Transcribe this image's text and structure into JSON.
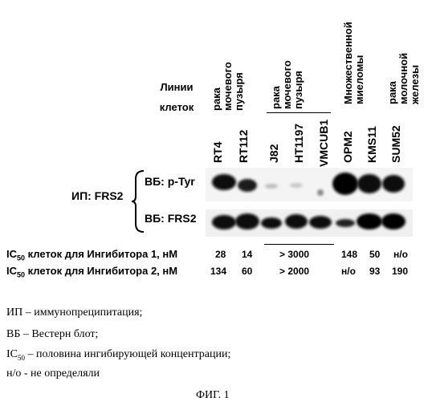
{
  "row_header": {
    "lines": [
      "Линии",
      "клеток"
    ]
  },
  "groups": {
    "bladder_1": [
      "рака",
      "мочевого",
      "пузыря"
    ],
    "bladder_2": [
      "рака",
      "мочевого",
      "пузыря"
    ],
    "myeloma": [
      "Множественной",
      "миеломы"
    ],
    "breast": [
      "рака",
      "молочной",
      "железы"
    ]
  },
  "cell_lines": [
    "RT4",
    "RT112",
    "J82",
    "HT1197",
    "VMCUB1",
    "OPM2",
    "KMS11",
    "SUM52"
  ],
  "ip_label": "ИП: FRS2",
  "blot_labels": {
    "ptyr": "ВБ: p-Tyr",
    "frs2": "ВБ: FRS2"
  },
  "ic50_rows": [
    {
      "label_prefix": "IC",
      "label_sub": "50",
      "label_rest": " клеток для Ингибитора 1, нМ",
      "values": [
        "28",
        "14",
        "> 3000",
        "148",
        "50",
        "н/о"
      ]
    },
    {
      "label_prefix": "IC",
      "label_sub": "50",
      "label_rest": " клеток для Ингибитора 2, нМ",
      "values": [
        "134",
        "60",
        "> 2000",
        "н/о",
        "93",
        "190"
      ]
    }
  ],
  "legend": {
    "ip": "ИП – иммунопреципитация;",
    "wb": "ВБ – Вестерн блот;",
    "ic50_prefix": "IC",
    "ic50_sub": "50",
    "ic50_rest": " – половина ингибирующей концентрации;",
    "nd": "н/о - не определяли"
  },
  "figure_caption": "ФИГ. 1",
  "colors": {
    "band": "#0a0a0a",
    "background": "#ffffff"
  }
}
